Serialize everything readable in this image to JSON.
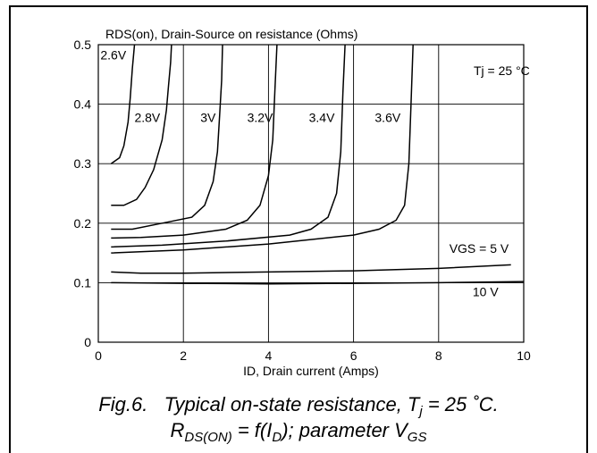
{
  "chart_data": {
    "type": "line",
    "title": "RDS(on), Drain-Source on resistance (Ohms)",
    "xlabel": "ID, Drain current (Amps)",
    "xlim": [
      0,
      10
    ],
    "ylim": [
      0,
      0.5
    ],
    "xticks": [
      "0",
      "2",
      "4",
      "6",
      "8",
      "10"
    ],
    "yticks": [
      "0",
      "0.1",
      "0.2",
      "0.3",
      "0.4",
      "0.5"
    ],
    "grid": true,
    "annotation": "Tj = 25 °C",
    "series": [
      {
        "name": "2.6V",
        "x": [
          0.3,
          0.5,
          0.6,
          0.7,
          0.75,
          0.8,
          0.85
        ],
        "y": [
          0.3,
          0.31,
          0.33,
          0.37,
          0.41,
          0.46,
          0.5
        ]
      },
      {
        "name": "2.8V",
        "x": [
          0.3,
          0.6,
          0.9,
          1.1,
          1.3,
          1.5,
          1.6,
          1.65,
          1.7,
          1.72
        ],
        "y": [
          0.23,
          0.23,
          0.24,
          0.26,
          0.29,
          0.34,
          0.39,
          0.43,
          0.47,
          0.5
        ]
      },
      {
        "name": "3V",
        "x": [
          0.3,
          0.8,
          1.5,
          2.2,
          2.5,
          2.7,
          2.8,
          2.85,
          2.9,
          2.92
        ],
        "y": [
          0.19,
          0.19,
          0.2,
          0.21,
          0.23,
          0.27,
          0.32,
          0.38,
          0.44,
          0.5
        ]
      },
      {
        "name": "3.2V",
        "x": [
          0.3,
          1.0,
          2.0,
          3.0,
          3.5,
          3.8,
          4.0,
          4.1,
          4.15,
          4.2
        ],
        "y": [
          0.175,
          0.176,
          0.18,
          0.19,
          0.205,
          0.23,
          0.28,
          0.34,
          0.42,
          0.5
        ]
      },
      {
        "name": "3.4V",
        "x": [
          0.3,
          1.5,
          3.0,
          4.5,
          5.0,
          5.4,
          5.6,
          5.7,
          5.75,
          5.8
        ],
        "y": [
          0.16,
          0.163,
          0.17,
          0.18,
          0.19,
          0.21,
          0.25,
          0.32,
          0.42,
          0.5
        ]
      },
      {
        "name": "3.6V",
        "x": [
          0.3,
          2.0,
          4.0,
          6.0,
          6.6,
          7.0,
          7.2,
          7.3,
          7.35,
          7.4
        ],
        "y": [
          0.15,
          0.155,
          0.165,
          0.18,
          0.19,
          0.205,
          0.23,
          0.3,
          0.4,
          0.5
        ]
      },
      {
        "name": "VGS = 5 V",
        "x": [
          0.3,
          1.0,
          2.0,
          4.0,
          6.0,
          8.0,
          9.7
        ],
        "y": [
          0.118,
          0.116,
          0.116,
          0.118,
          0.12,
          0.124,
          0.13
        ]
      },
      {
        "name": "10 V",
        "x": [
          0.3,
          2.0,
          4.0,
          6.0,
          8.0,
          10.0
        ],
        "y": [
          0.1,
          0.099,
          0.098,
          0.099,
          0.1,
          0.102
        ]
      }
    ],
    "labels": [
      {
        "text": "2.6V",
        "x": 0.05,
        "y": 0.475
      },
      {
        "text": "2.8V",
        "x": 0.85,
        "y": 0.37
      },
      {
        "text": "3V",
        "x": 2.4,
        "y": 0.37
      },
      {
        "text": "3.2V",
        "x": 3.5,
        "y": 0.37
      },
      {
        "text": "3.4V",
        "x": 4.95,
        "y": 0.37
      },
      {
        "text": "3.6V",
        "x": 6.5,
        "y": 0.37
      },
      {
        "text": "VGS = 5 V",
        "x": 8.25,
        "y": 0.15
      },
      {
        "text": "10 V",
        "x": 8.8,
        "y": 0.077
      }
    ]
  },
  "caption": {
    "fig": "Fig.6.",
    "line1_pre": "Typical on-state resistance, T",
    "line1_sub": "j",
    "line1_post": " = 25 ˚C.",
    "line2_r": "R",
    "line2_r_sub": "DS(ON)",
    "line2_mid": " = f(I",
    "line2_i_sub": "D",
    "line2_post": "); parameter V",
    "line2_v_sub": "GS"
  }
}
